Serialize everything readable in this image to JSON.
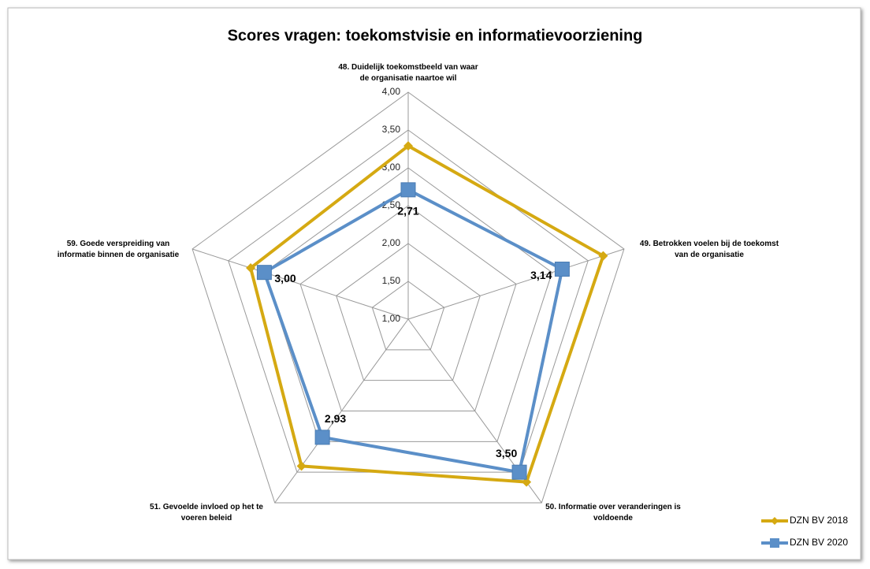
{
  "chart_data": {
    "type": "radar",
    "title": "Scores vragen: toekomstvisie en informatievoorziening",
    "categories": [
      [
        "48. Duidelijk toekomstbeeld van waar",
        "de organisatie naartoe wil"
      ],
      [
        "49. Betrokken voelen bij de toekomst",
        "van de organisatie"
      ],
      [
        "50. Informatie over veranderingen is",
        "voldoende"
      ],
      [
        "51. Gevoelde invloed op het te",
        "voeren beleid"
      ],
      [
        "59. Goede verspreiding van",
        "informatie binnen de organisatie"
      ]
    ],
    "series": [
      {
        "name": "DZN BV 2018",
        "color": "#d5a912",
        "marker": "diamond",
        "values": [
          3.29,
          3.71,
          3.66,
          3.4,
          3.19
        ]
      },
      {
        "name": "DZN BV 2020",
        "color": "#5b8fc8",
        "marker": "square",
        "values": [
          2.71,
          3.14,
          3.5,
          2.93,
          3.0
        ],
        "value_labels": [
          "2,71",
          "3,14",
          "3,50",
          "2,93",
          "3,00"
        ]
      }
    ],
    "ylim": [
      1,
      4
    ],
    "yticks": [
      {
        "value": 1,
        "label": "1,00"
      },
      {
        "value": 1.5,
        "label": "1,50"
      },
      {
        "value": 2,
        "label": "2,00"
      },
      {
        "value": 2.5,
        "label": "2,50"
      },
      {
        "value": 3,
        "label": "3,00"
      },
      {
        "value": 3.5,
        "label": "3,50"
      },
      {
        "value": 4,
        "label": "4,00"
      }
    ],
    "grid": true,
    "legend": "bottom-right"
  }
}
